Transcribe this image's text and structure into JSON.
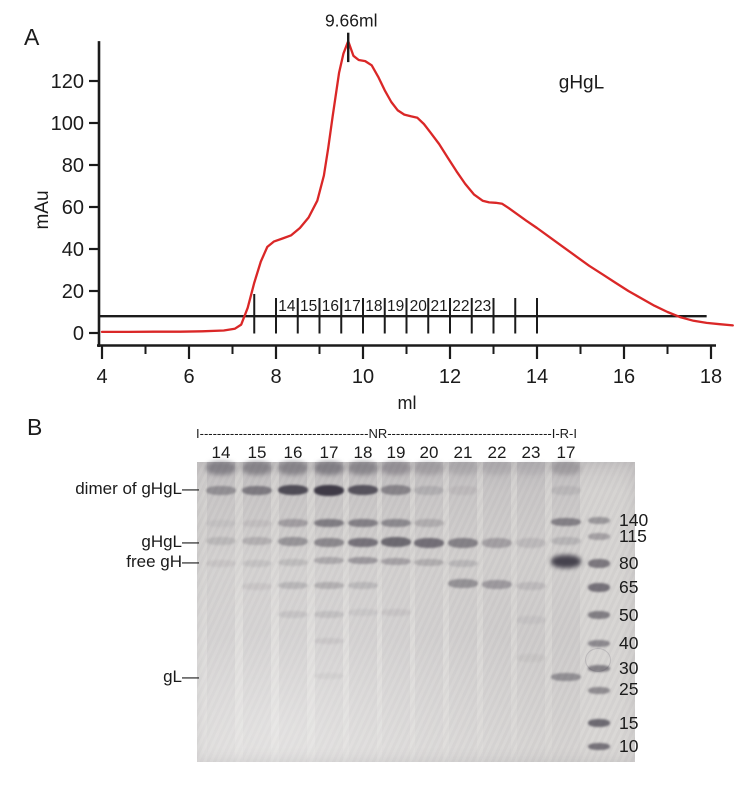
{
  "colors": {
    "curve": "#da2727",
    "axis": "#1b1b1b",
    "gel_bg": "#d6d4d2",
    "band": "#3a3642"
  },
  "chart_data": {
    "type": "line",
    "panel_label": "A",
    "title": "",
    "xlabel": "ml",
    "ylabel": "mAu",
    "xlim": [
      4,
      18
    ],
    "ylim": [
      0,
      139
    ],
    "xticks_major": [
      4,
      6,
      8,
      10,
      12,
      14,
      16,
      18
    ],
    "xticks_minor": [
      5,
      7,
      9,
      11,
      13,
      15,
      17
    ],
    "yticks": [
      0,
      20,
      40,
      60,
      80,
      100,
      120
    ],
    "grid": false,
    "series_label": {
      "text": "gHgL",
      "ml": 14.5,
      "mAu": 116.5
    },
    "peak_annotation": {
      "text": "9.66ml",
      "ml": 9.66,
      "marker_mAu": [
        129,
        143
      ],
      "label_mAu": 146
    },
    "threshold_line": {
      "y": 8,
      "x1": 3.95,
      "x2": 17.9
    },
    "fractions": {
      "ticks": [
        7.5,
        8.0,
        8.5,
        9.0,
        9.5,
        10.0,
        10.5,
        11.0,
        11.5,
        12.0,
        12.5,
        13.0,
        13.5,
        14.0
      ],
      "labels": [
        {
          "text": "14",
          "ml": 8.25
        },
        {
          "text": "15",
          "ml": 8.75
        },
        {
          "text": "16",
          "ml": 9.25
        },
        {
          "text": "17",
          "ml": 9.75
        },
        {
          "text": "18",
          "ml": 10.25
        },
        {
          "text": "19",
          "ml": 10.75
        },
        {
          "text": "20",
          "ml": 11.27
        },
        {
          "text": "21",
          "ml": 11.75
        },
        {
          "text": "22",
          "ml": 12.25
        },
        {
          "text": "23",
          "ml": 12.75
        }
      ]
    },
    "series": [
      {
        "name": "UV absorbance (gHgL)",
        "points": [
          [
            4.0,
            0.5
          ],
          [
            4.6,
            0.5
          ],
          [
            5.2,
            0.6
          ],
          [
            5.8,
            0.6
          ],
          [
            6.3,
            0.8
          ],
          [
            6.8,
            1.2
          ],
          [
            7.05,
            2
          ],
          [
            7.2,
            4
          ],
          [
            7.35,
            12
          ],
          [
            7.5,
            24
          ],
          [
            7.65,
            34
          ],
          [
            7.8,
            41
          ],
          [
            7.95,
            43.5
          ],
          [
            8.15,
            45
          ],
          [
            8.35,
            46.5
          ],
          [
            8.55,
            50
          ],
          [
            8.75,
            55
          ],
          [
            8.95,
            63
          ],
          [
            9.1,
            75
          ],
          [
            9.2,
            88
          ],
          [
            9.3,
            103
          ],
          [
            9.45,
            124
          ],
          [
            9.55,
            133
          ],
          [
            9.66,
            139
          ],
          [
            9.78,
            132
          ],
          [
            9.9,
            130
          ],
          [
            10.05,
            129.5
          ],
          [
            10.2,
            127.5
          ],
          [
            10.35,
            122
          ],
          [
            10.5,
            115.5
          ],
          [
            10.65,
            110
          ],
          [
            10.8,
            106
          ],
          [
            10.95,
            104
          ],
          [
            11.1,
            103.2
          ],
          [
            11.25,
            102.5
          ],
          [
            11.4,
            99.5
          ],
          [
            11.55,
            95.5
          ],
          [
            11.75,
            90
          ],
          [
            11.95,
            83.5
          ],
          [
            12.15,
            77
          ],
          [
            12.35,
            71
          ],
          [
            12.55,
            66
          ],
          [
            12.75,
            63
          ],
          [
            12.9,
            62.2
          ],
          [
            13.05,
            62
          ],
          [
            13.2,
            61.5
          ],
          [
            13.35,
            59.5
          ],
          [
            13.55,
            56.5
          ],
          [
            13.75,
            53.5
          ],
          [
            14.0,
            50
          ],
          [
            14.3,
            45.5
          ],
          [
            14.6,
            41
          ],
          [
            14.9,
            36.5
          ],
          [
            15.2,
            32
          ],
          [
            15.5,
            28
          ],
          [
            15.8,
            24
          ],
          [
            16.1,
            20
          ],
          [
            16.4,
            16.5
          ],
          [
            16.7,
            13
          ],
          [
            17.0,
            10
          ],
          [
            17.3,
            7.5
          ],
          [
            17.6,
            5.8
          ],
          [
            17.9,
            4.8
          ],
          [
            18.2,
            4.2
          ],
          [
            18.5,
            3.6
          ]
        ]
      }
    ]
  },
  "gel": {
    "panel_label": "B",
    "header": "I---------------------------------------NR--------------------------------------I-R-I",
    "condition_left": "NR",
    "condition_right": "R",
    "row_labels": [
      {
        "text": "dimer of gHgL—",
        "y": 489
      },
      {
        "text": "gHgL—",
        "y": 542
      },
      {
        "text": "free gH—",
        "y": 562
      },
      {
        "text": "gL—",
        "y": 677
      }
    ],
    "mw_markers": [
      {
        "text": "140",
        "y": 520
      },
      {
        "text": "115",
        "y": 536
      },
      {
        "text": "80",
        "y": 563
      },
      {
        "text": "65",
        "y": 587
      },
      {
        "text": "50",
        "y": 615
      },
      {
        "text": "40",
        "y": 643
      },
      {
        "text": "30",
        "y": 668
      },
      {
        "text": "25",
        "y": 689
      },
      {
        "text": "15",
        "y": 723
      },
      {
        "text": "10",
        "y": 746
      }
    ],
    "lanes": [
      {
        "label": "14",
        "x": 221,
        "bands": [
          [
            468,
            0.42,
            14
          ],
          [
            490,
            0.38,
            9
          ],
          [
            523,
            0.06,
            7
          ],
          [
            541,
            0.14,
            8
          ],
          [
            563,
            0.08,
            7
          ]
        ]
      },
      {
        "label": "15",
        "x": 257,
        "bands": [
          [
            468,
            0.4,
            14
          ],
          [
            490,
            0.52,
            9
          ],
          [
            523,
            0.08,
            7
          ],
          [
            541,
            0.2,
            8
          ],
          [
            563,
            0.1,
            7
          ],
          [
            586,
            0.08,
            7
          ]
        ]
      },
      {
        "label": "16",
        "x": 293,
        "bands": [
          [
            468,
            0.4,
            14
          ],
          [
            490,
            0.85,
            10
          ],
          [
            523,
            0.3,
            8
          ],
          [
            541,
            0.38,
            9
          ],
          [
            562,
            0.14,
            7
          ],
          [
            585,
            0.18,
            7
          ],
          [
            614,
            0.1,
            7
          ]
        ]
      },
      {
        "label": "17",
        "x": 329,
        "bands": [
          [
            468,
            0.44,
            14
          ],
          [
            490,
            0.97,
            11
          ],
          [
            523,
            0.52,
            8
          ],
          [
            542,
            0.46,
            9
          ],
          [
            560,
            0.26,
            7
          ],
          [
            585,
            0.22,
            7
          ],
          [
            614,
            0.12,
            7
          ],
          [
            641,
            0.08,
            6
          ],
          [
            676,
            0.05,
            6
          ]
        ]
      },
      {
        "label": "18",
        "x": 363,
        "bands": [
          [
            468,
            0.38,
            14
          ],
          [
            490,
            0.8,
            10
          ],
          [
            523,
            0.5,
            8
          ],
          [
            542,
            0.6,
            9
          ],
          [
            560,
            0.36,
            7
          ],
          [
            585,
            0.16,
            7
          ],
          [
            612,
            0.07,
            7
          ]
        ]
      },
      {
        "label": "19",
        "x": 396,
        "bands": [
          [
            468,
            0.3,
            14
          ],
          [
            490,
            0.46,
            10
          ],
          [
            523,
            0.44,
            8
          ],
          [
            542,
            0.66,
            10
          ],
          [
            561,
            0.3,
            7
          ],
          [
            612,
            0.08,
            7
          ]
        ]
      },
      {
        "label": "20",
        "x": 429,
        "bands": [
          [
            468,
            0.2,
            14
          ],
          [
            490,
            0.16,
            9
          ],
          [
            523,
            0.2,
            8
          ],
          [
            543,
            0.62,
            10
          ],
          [
            562,
            0.22,
            7
          ]
        ]
      },
      {
        "label": "21",
        "x": 463,
        "bands": [
          [
            468,
            0.12,
            14
          ],
          [
            490,
            0.08,
            9
          ],
          [
            543,
            0.5,
            10
          ],
          [
            563,
            0.16,
            7
          ],
          [
            583,
            0.4,
            9
          ]
        ]
      },
      {
        "label": "22",
        "x": 497,
        "bands": [
          [
            468,
            0.1,
            14
          ],
          [
            543,
            0.3,
            10
          ],
          [
            584,
            0.34,
            9
          ]
        ]
      },
      {
        "label": "23",
        "x": 531,
        "bands": [
          [
            468,
            0.07,
            14
          ],
          [
            543,
            0.13,
            10
          ],
          [
            586,
            0.13,
            8
          ],
          [
            620,
            0.06,
            8
          ],
          [
            658,
            0.05,
            8
          ]
        ]
      },
      {
        "label": "17",
        "x": 566,
        "bands": [
          [
            468,
            0.22,
            14
          ],
          [
            490,
            0.1,
            9
          ],
          [
            522,
            0.5,
            8
          ],
          [
            541,
            0.16,
            8
          ],
          [
            561,
            0.92,
            13
          ],
          [
            677,
            0.42,
            8
          ]
        ]
      }
    ],
    "ladder": {
      "x": 599,
      "width": 22,
      "bands": [
        [
          520,
          0.38,
          7
        ],
        [
          536,
          0.32,
          7
        ],
        [
          563,
          0.58,
          9
        ],
        [
          587,
          0.62,
          9
        ],
        [
          615,
          0.55,
          8
        ],
        [
          643,
          0.48,
          7
        ],
        [
          668,
          0.52,
          7
        ],
        [
          690,
          0.46,
          7
        ],
        [
          723,
          0.68,
          8
        ],
        [
          746,
          0.62,
          7
        ]
      ]
    }
  }
}
